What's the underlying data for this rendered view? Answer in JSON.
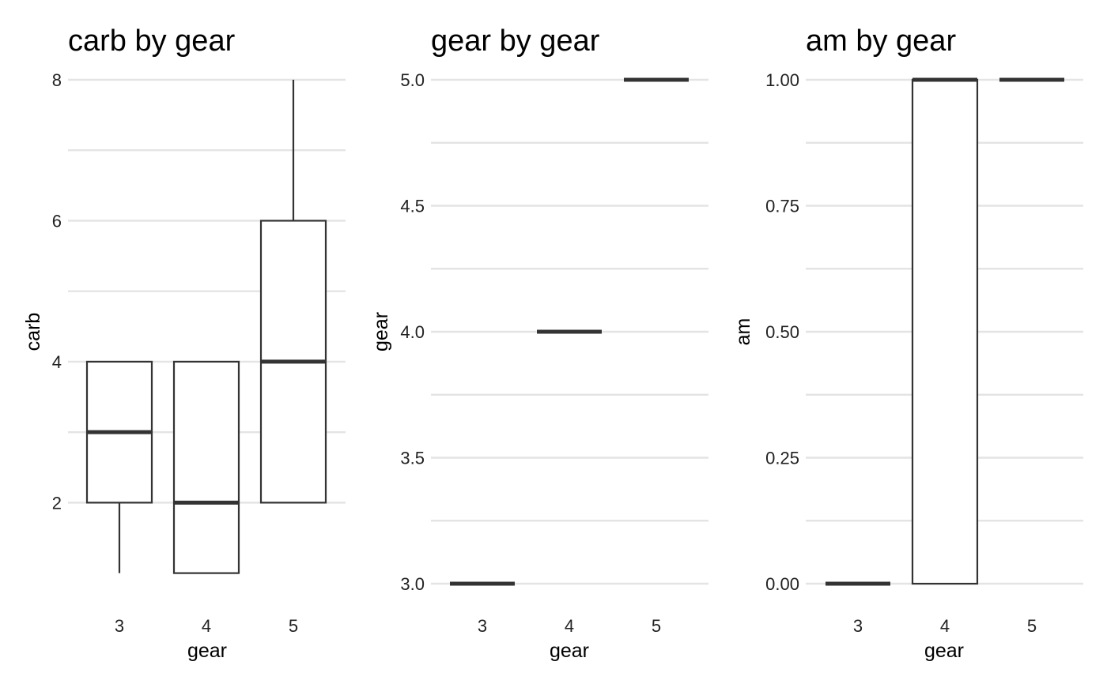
{
  "chart_data": [
    {
      "type": "boxplot",
      "title": "carb by gear",
      "xlabel": "gear",
      "ylabel": "carb",
      "categories": [
        "3",
        "4",
        "5"
      ],
      "ylim": [
        0.85,
        8.0
      ],
      "yticks": [
        2,
        4,
        6,
        8
      ],
      "ytick_labels": [
        "2",
        "4",
        "6",
        "8"
      ],
      "yminor": [
        3,
        5,
        7
      ],
      "boxes": [
        {
          "x": "3",
          "whisker_low": 1,
          "q1": 2,
          "median": 3,
          "q3": 4,
          "whisker_high": 4
        },
        {
          "x": "4",
          "whisker_low": 1,
          "q1": 1,
          "median": 2,
          "q3": 4,
          "whisker_high": 4
        },
        {
          "x": "5",
          "whisker_low": 2,
          "q1": 2,
          "median": 4,
          "q3": 6,
          "whisker_high": 8
        }
      ],
      "grid": true
    },
    {
      "type": "boxplot",
      "title": "gear by gear",
      "xlabel": "gear",
      "ylabel": "gear",
      "categories": [
        "3",
        "4",
        "5"
      ],
      "ylim": [
        3.0,
        5.0
      ],
      "yticks": [
        3.0,
        3.5,
        4.0,
        4.5,
        5.0
      ],
      "ytick_labels": [
        "3.0",
        "3.5",
        "4.0",
        "4.5",
        "5.0"
      ],
      "yminor": [
        3.25,
        3.75,
        4.25,
        4.75
      ],
      "boxes": [
        {
          "x": "3",
          "whisker_low": 3,
          "q1": 3,
          "median": 3,
          "q3": 3,
          "whisker_high": 3
        },
        {
          "x": "4",
          "whisker_low": 4,
          "q1": 4,
          "median": 4,
          "q3": 4,
          "whisker_high": 4
        },
        {
          "x": "5",
          "whisker_low": 5,
          "q1": 5,
          "median": 5,
          "q3": 5,
          "whisker_high": 5
        }
      ],
      "grid": true
    },
    {
      "type": "boxplot",
      "title": "am by gear",
      "xlabel": "gear",
      "ylabel": "am",
      "categories": [
        "3",
        "4",
        "5"
      ],
      "ylim": [
        0.0,
        1.0
      ],
      "yticks": [
        0.0,
        0.25,
        0.5,
        0.75,
        1.0
      ],
      "ytick_labels": [
        "0.00",
        "0.25",
        "0.50",
        "0.75",
        "1.00"
      ],
      "yminor": [
        0.125,
        0.375,
        0.625,
        0.875
      ],
      "boxes": [
        {
          "x": "3",
          "whisker_low": 0,
          "q1": 0,
          "median": 0,
          "q3": 0,
          "whisker_high": 0
        },
        {
          "x": "4",
          "whisker_low": 0,
          "q1": 0,
          "median": 1,
          "q3": 1,
          "whisker_high": 1
        },
        {
          "x": "5",
          "whisker_low": 1,
          "q1": 1,
          "median": 1,
          "q3": 1,
          "whisker_high": 1
        }
      ],
      "grid": true
    }
  ]
}
